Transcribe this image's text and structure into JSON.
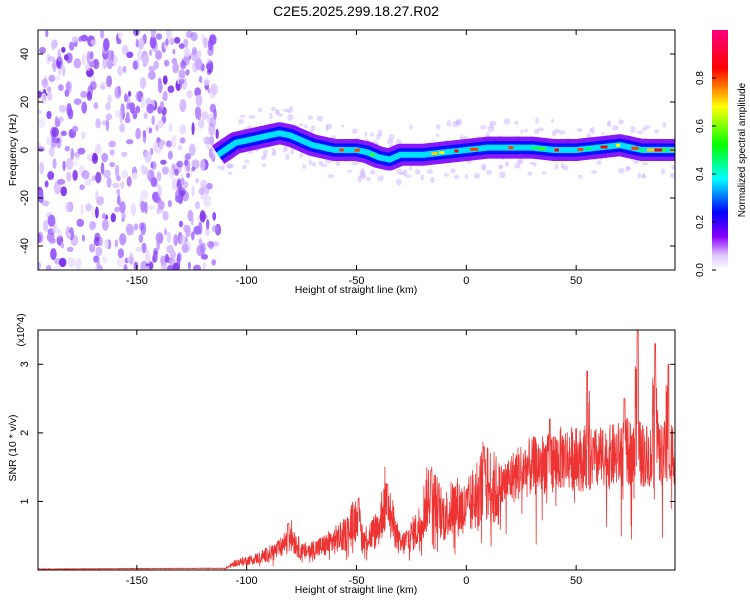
{
  "figure_title": "C2E5.2025.299.18.27.R02",
  "chart_data": [
    {
      "type": "heatmap",
      "title": "C2E5.2025.299.18.27.R02",
      "xlabel": "Height of straight line (km)",
      "ylabel": "Frequency (Hz)",
      "xlim": [
        -195,
        95
      ],
      "ylim": [
        -50,
        50
      ],
      "xticks": [
        -150,
        -100,
        -50,
        0,
        50
      ],
      "yticks": [
        -40,
        -20,
        0,
        20,
        40
      ],
      "colorbar": {
        "label": "Normalized spectral amplitude",
        "range": [
          0,
          1
        ],
        "ticks": [
          "0.0",
          "0.2",
          "0.4",
          "0.6",
          "0.8"
        ],
        "colormap": [
          "#ffffff",
          "#8800ff",
          "#0000ff",
          "#00ffff",
          "#00ff00",
          "#ffff00",
          "#ff0000",
          "#ff0080"
        ]
      },
      "noise_region_x": [
        -195,
        -113
      ],
      "dominant_frequency_track": [
        {
          "x": -113,
          "y": -2
        },
        {
          "x": -105,
          "y": 3
        },
        {
          "x": -95,
          "y": 5
        },
        {
          "x": -85,
          "y": 7
        },
        {
          "x": -80,
          "y": 6
        },
        {
          "x": -70,
          "y": 2
        },
        {
          "x": -60,
          "y": 0
        },
        {
          "x": -50,
          "y": 0
        },
        {
          "x": -45,
          "y": -1
        },
        {
          "x": -40,
          "y": -3
        },
        {
          "x": -35,
          "y": -4
        },
        {
          "x": -30,
          "y": -2
        },
        {
          "x": -20,
          "y": -2
        },
        {
          "x": -10,
          "y": -1
        },
        {
          "x": 0,
          "y": 0
        },
        {
          "x": 10,
          "y": 1
        },
        {
          "x": 20,
          "y": 1
        },
        {
          "x": 30,
          "y": 1
        },
        {
          "x": 40,
          "y": 0
        },
        {
          "x": 50,
          "y": 0
        },
        {
          "x": 60,
          "y": 1
        },
        {
          "x": 70,
          "y": 2
        },
        {
          "x": 80,
          "y": 0
        },
        {
          "x": 95,
          "y": 0
        }
      ]
    },
    {
      "type": "line",
      "xlabel": "Height of straight line (km)",
      "ylabel": "SNR (10 * v/v)",
      "y_multiplier": "(x10^4)",
      "xlim": [
        -195,
        95
      ],
      "ylim": [
        0,
        3.5
      ],
      "xticks": [
        -150,
        -100,
        -50,
        0,
        50
      ],
      "yticks": [
        1,
        2,
        3
      ],
      "series": [
        {
          "color": "#ee3333",
          "envelope": [
            {
              "x": -195,
              "y": 0.01
            },
            {
              "x": -110,
              "y": 0.02
            },
            {
              "x": -105,
              "y": 0.12
            },
            {
              "x": -95,
              "y": 0.2
            },
            {
              "x": -85,
              "y": 0.35
            },
            {
              "x": -80,
              "y": 0.6
            },
            {
              "x": -75,
              "y": 0.3
            },
            {
              "x": -65,
              "y": 0.4
            },
            {
              "x": -55,
              "y": 0.6
            },
            {
              "x": -50,
              "y": 0.9
            },
            {
              "x": -47,
              "y": 0.5
            },
            {
              "x": -40,
              "y": 0.7
            },
            {
              "x": -37,
              "y": 1.2
            },
            {
              "x": -30,
              "y": 0.4
            },
            {
              "x": -22,
              "y": 0.7
            },
            {
              "x": -17,
              "y": 1.3
            },
            {
              "x": -10,
              "y": 0.9
            },
            {
              "x": -5,
              "y": 1.1
            },
            {
              "x": 0,
              "y": 1.0
            },
            {
              "x": 8,
              "y": 1.5
            },
            {
              "x": 15,
              "y": 1.3
            },
            {
              "x": 25,
              "y": 1.6
            },
            {
              "x": 35,
              "y": 1.7
            },
            {
              "x": 45,
              "y": 1.8
            },
            {
              "x": 55,
              "y": 1.75
            },
            {
              "x": 65,
              "y": 1.8
            },
            {
              "x": 75,
              "y": 1.9
            },
            {
              "x": 85,
              "y": 1.8
            },
            {
              "x": 95,
              "y": 1.9
            }
          ],
          "peaks": [
            {
              "x": -81,
              "y": 0.68
            },
            {
              "x": -49,
              "y": 1.05
            },
            {
              "x": -36,
              "y": 1.25
            },
            {
              "x": -16,
              "y": 1.45
            },
            {
              "x": 8,
              "y": 1.8
            },
            {
              "x": 38,
              "y": 2.2
            },
            {
              "x": 55,
              "y": 2.9
            },
            {
              "x": 72,
              "y": 2.5
            },
            {
              "x": 78,
              "y": 3.5
            },
            {
              "x": 86,
              "y": 3.3
            },
            {
              "x": 92,
              "y": 3.0
            }
          ]
        }
      ]
    }
  ]
}
